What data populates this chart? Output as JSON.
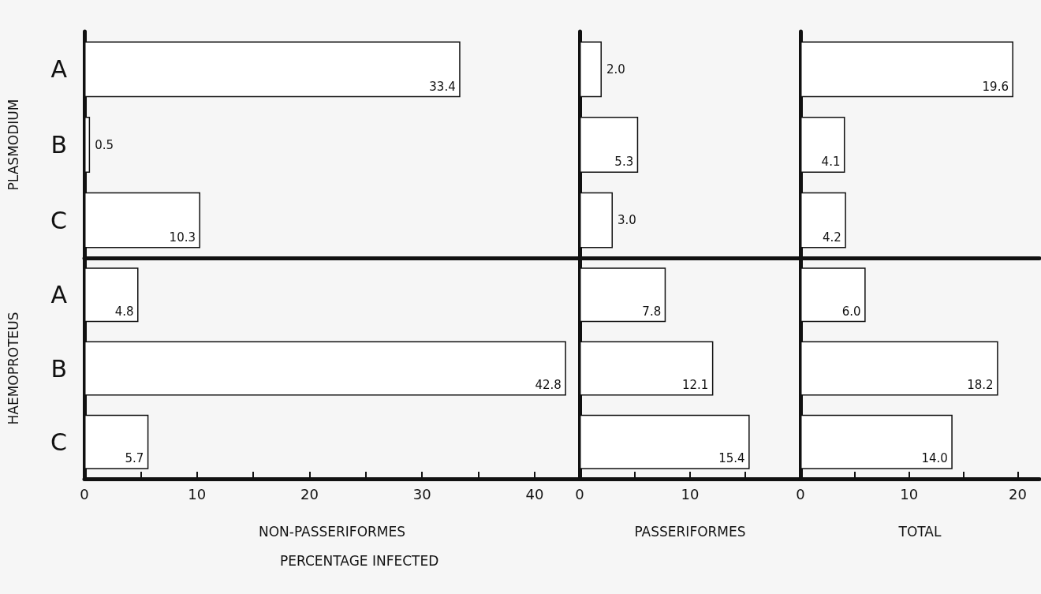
{
  "chart_data": [
    {
      "type": "bar",
      "orientation": "horizontal",
      "ylabel": "PLASMODIUM",
      "categories": [
        "A",
        "B",
        "C"
      ],
      "values": [
        33.4,
        0.5,
        10.3
      ],
      "value_labels": [
        "33.4",
        "0.5",
        "10.3"
      ],
      "color": "#ffffff",
      "xlim": [
        0,
        44
      ],
      "tick_labels": "y"
    },
    {
      "type": "bar",
      "orientation": "horizontal",
      "categories": [
        null,
        null,
        null
      ],
      "values": [
        2.0,
        5.3,
        3.0
      ],
      "value_labels": [
        "2.0",
        "5.3",
        "3.0"
      ],
      "color": "#ffffff",
      "xlim": [
        0,
        20
      ],
      "tick_labels": false
    },
    {
      "type": "bar",
      "orientation": "horizontal",
      "categories": [
        null,
        null,
        null
      ],
      "values": [
        19.6,
        4.1,
        4.2
      ],
      "value_labels": [
        "19.6",
        "4.1",
        "4.2"
      ],
      "color": "#ffffff",
      "xlim": [
        0,
        22
      ],
      "tick_labels": false
    },
    {
      "type": "bar",
      "orientation": "horizontal",
      "ylabel": "HAEMOPROTEUS",
      "xlabel": "NON-PASSERIFORMES",
      "annotations": [
        "PERCENTAGE INFECTED"
      ],
      "categories": [
        "A",
        "B",
        "C"
      ],
      "values": [
        4.8,
        42.8,
        5.7
      ],
      "value_labels": [
        "4.8",
        "42.8",
        "5.7"
      ],
      "color": "#ffffff",
      "xlim": [
        0,
        44
      ],
      "xticks": [
        0,
        {
          "value": 5,
          "label": null
        },
        10,
        {
          "value": 15,
          "label": null
        },
        20,
        {
          "value": 25,
          "label": null
        },
        30,
        {
          "value": 35,
          "label": null
        },
        40
      ]
    },
    {
      "type": "bar",
      "orientation": "horizontal",
      "xlabel": "PASSERIFORMES",
      "categories": [
        null,
        null,
        null
      ],
      "values": [
        7.8,
        12.1,
        15.4
      ],
      "value_labels": [
        "7.8",
        "12.1",
        "15.4"
      ],
      "color": "#ffffff",
      "xlim": [
        0,
        20
      ],
      "xticks": [
        0,
        {
          "value": 5,
          "label": null
        },
        10,
        {
          "value": 15,
          "label": null
        }
      ],
      "tick_labels": "x"
    },
    {
      "type": "bar",
      "orientation": "horizontal",
      "xlabel": "TOTAL",
      "categories": [
        null,
        null,
        null
      ],
      "values": [
        6.0,
        18.2,
        14.0
      ],
      "value_labels": [
        "6.0",
        "18.2",
        "14.0"
      ],
      "color": "#ffffff",
      "xlim": [
        0,
        22
      ],
      "xticks": [
        0,
        {
          "value": 5,
          "label": null
        },
        10,
        {
          "value": 15,
          "label": null
        },
        20
      ],
      "tick_labels": "x"
    }
  ]
}
